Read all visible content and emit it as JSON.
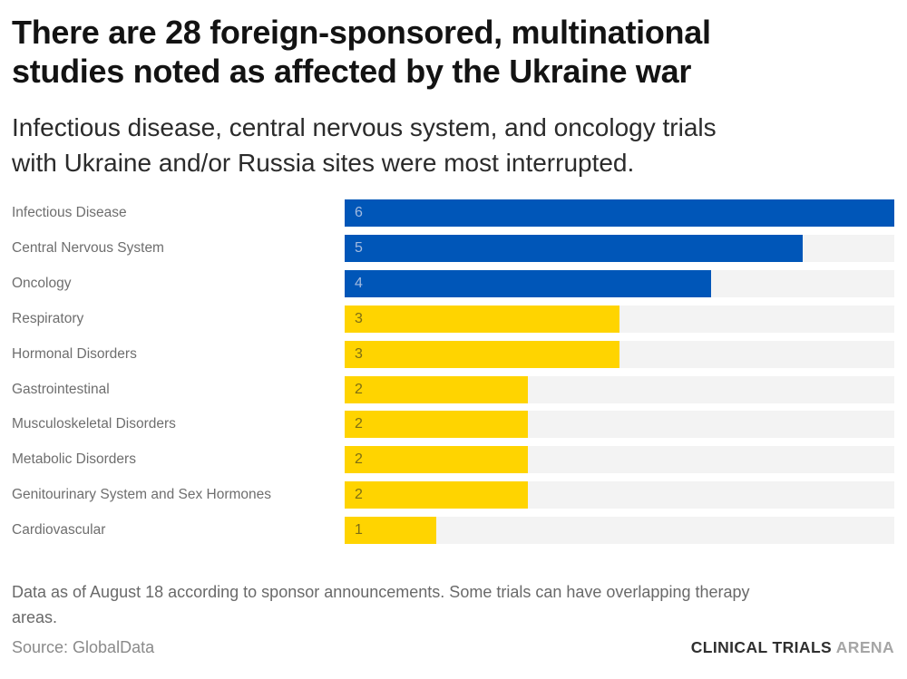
{
  "header": {
    "title": "There are 28 foreign-sponsored, multinational studies noted as affected by the Ukraine war",
    "title_lines": [
      "There are 28 foreign-sponsored, multinational",
      "studies noted as affected by the Ukraine war"
    ],
    "subtitle": "Infectious disease, central nervous system, and oncology trials with Ukraine and/or Russia sites were most interrupted.",
    "subtitle_lines": [
      "Infectious disease, central nervous system, and oncology trials",
      "with Ukraine and/or Russia sites were most interrupted."
    ]
  },
  "chart_data": {
    "type": "bar",
    "orientation": "horizontal",
    "title": "There are 28 foreign-sponsored, multinational studies noted as affected by the Ukraine war",
    "xlabel": "",
    "ylabel": "",
    "xlim": [
      0,
      6
    ],
    "grid": false,
    "legend": "none",
    "value_labels": "inside-left",
    "categories": [
      "Infectious Disease",
      "Central Nervous System",
      "Oncology",
      "Respiratory",
      "Hormonal Disorders",
      "Gastrointestinal",
      "Musculoskeletal Disorders",
      "Metabolic Disorders",
      "Genitourinary System and Sex Hormones",
      "Cardiovascular"
    ],
    "values": [
      6,
      5,
      4,
      3,
      3,
      2,
      2,
      2,
      2,
      1
    ],
    "bar_colors": [
      "#0056b8",
      "#0056b8",
      "#0056b8",
      "#ffd400",
      "#ffd400",
      "#ffd400",
      "#ffd400",
      "#ffd400",
      "#ffd400",
      "#ffd400"
    ],
    "value_label_colors": [
      "#a3bbe0",
      "#a3bbe0",
      "#a3bbe0",
      "#7d6e14",
      "#7d6e14",
      "#7d6e14",
      "#7d6e14",
      "#7d6e14",
      "#7d6e14",
      "#7d6e14"
    ],
    "track_color": "#f3f3f3",
    "palette": {
      "blue": "#0056b8",
      "yellow": "#ffd400"
    }
  },
  "footer": {
    "note": "Data as of August 18 according to sponsor announcements. Some trials can have overlapping therapy areas.",
    "note_lines": [
      "Data as of August 18 according to sponsor announcements. Some trials can have overlapping therapy",
      "areas."
    ],
    "source": "Source: GlobalData",
    "brand_primary": "CLINICAL TRIALS",
    "brand_secondary": "ARENA"
  }
}
